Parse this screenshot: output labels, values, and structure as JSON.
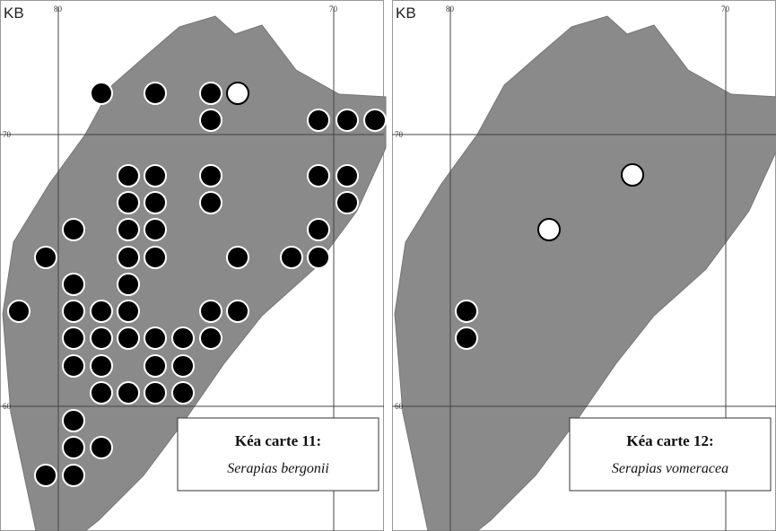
{
  "panels": [
    {
      "corner_label": "KB",
      "top_labels": [
        "80",
        "70"
      ],
      "side_labels": [
        "70",
        "60"
      ],
      "caption_title": "Kéa carte 11:",
      "caption_species": "Serapias bergonii"
    },
    {
      "corner_label": "KB",
      "top_labels": [
        "80",
        "70"
      ],
      "side_labels": [
        "70",
        "60"
      ],
      "caption_title": "Kéa carte 12:",
      "caption_species": "Serapias vomeracea"
    }
  ]
}
